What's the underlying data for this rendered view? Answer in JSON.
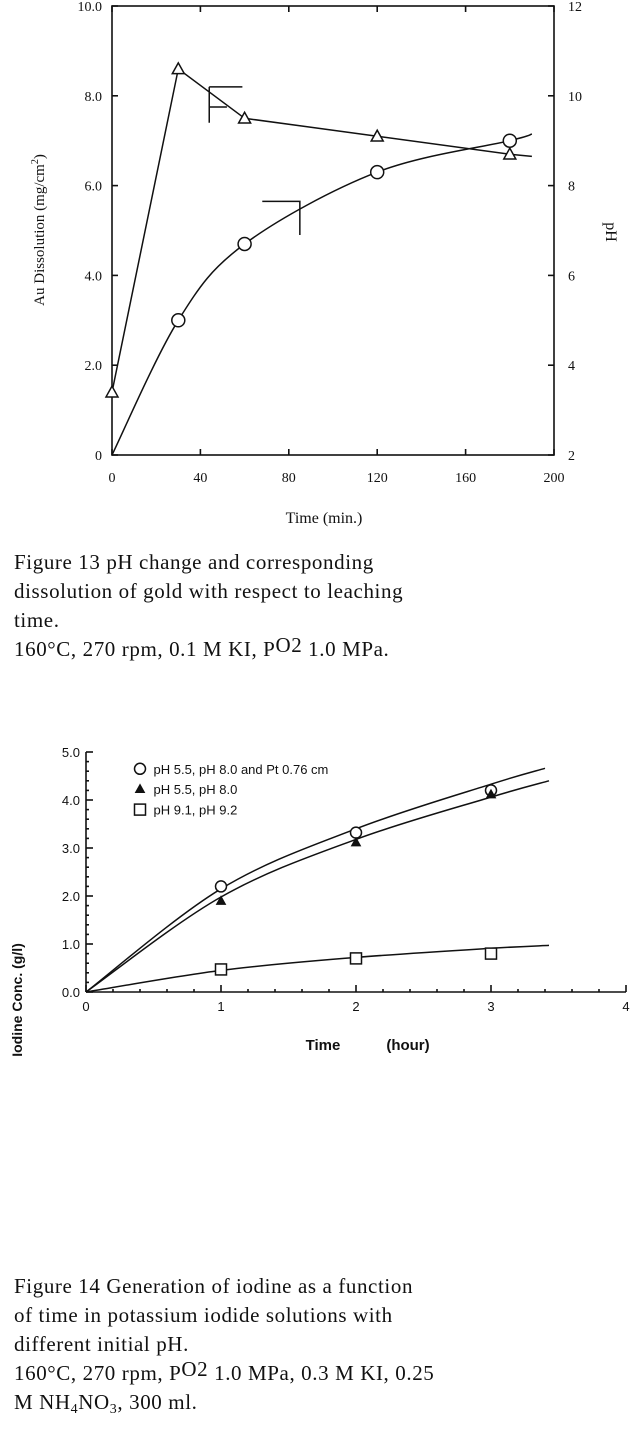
{
  "figure13": {
    "chart_data": {
      "type": "line",
      "xlabel": "Time (min.)",
      "ylabel_left": "Au Dissolution (mg/cm",
      "ylabel_left_sup": "2",
      "ylabel_left_end": ")",
      "ylabel_right": "pH",
      "xlim": [
        0,
        200
      ],
      "ylim_left": [
        0,
        10
      ],
      "ylim_right": [
        2,
        12
      ],
      "x_ticks": [
        "0",
        "40",
        "80",
        "120",
        "160",
        "200"
      ],
      "y_left_ticks": [
        "0",
        "2.0",
        "4.0",
        "6.0",
        "8.0",
        "10.0"
      ],
      "y_right_ticks": [
        "2",
        "4",
        "6",
        "8",
        "10",
        "12"
      ],
      "series": [
        {
          "marker": "triangle",
          "axis": "right",
          "x": [
            0,
            30,
            60,
            120,
            180
          ],
          "y": [
            3.4,
            10.6,
            9.5,
            9.1,
            8.7
          ]
        },
        {
          "marker": "circle",
          "axis": "left",
          "x": [
            0,
            30,
            60,
            120,
            180
          ],
          "y": [
            0.0,
            3.0,
            4.7,
            6.3,
            7.0
          ]
        }
      ]
    },
    "caption": [
      "Figure 13 pH  change  and  corresponding",
      "dissolution  of  gold  with  respect  to  leaching",
      "time.",
      "160°C, 270 rpm, 0.1 M KI, P",
      "O2",
      " 1.0 MPa."
    ]
  },
  "figure14": {
    "chart_data": {
      "type": "scatter",
      "xlabel": "Time",
      "xlabel_unit": "(hour)",
      "ylabel": "Iodine  Conc.  (g/l)",
      "xlim": [
        0,
        4
      ],
      "ylim": [
        0,
        5
      ],
      "x_ticks": [
        "0",
        "1",
        "2",
        "3",
        "4"
      ],
      "y_ticks": [
        "0.0",
        "1.0",
        "2.0",
        "3.0",
        "4.0",
        "5.0"
      ],
      "legend": "top-left",
      "series": [
        {
          "name": "pH  5.5, pH  8.0 and Pt 0.76 cm",
          "marker": "circle",
          "x": [
            1,
            2,
            3
          ],
          "y": [
            2.2,
            3.32,
            4.2
          ]
        },
        {
          "name": "pH  5.5, pH  8.0",
          "marker": "triangle-filled",
          "x": [
            1,
            2,
            3
          ],
          "y": [
            1.9,
            3.12,
            4.12
          ]
        },
        {
          "name": "pH  9.1, pH  9.2",
          "marker": "square",
          "x": [
            1,
            2,
            3
          ],
          "y": [
            0.47,
            0.7,
            0.8
          ]
        }
      ]
    },
    "caption": [
      "Figure  14  Generation  of  iodine  as  a  function",
      "of  time  in  potassium  iodide  solutions  with",
      "different  initial  pH.",
      "160°C, 270 rpm, P",
      "O2",
      " 1.0 MPa, 0.3 M KI, 0.25",
      "M NH",
      "4",
      "NO",
      "3",
      ", 300 ml."
    ]
  }
}
